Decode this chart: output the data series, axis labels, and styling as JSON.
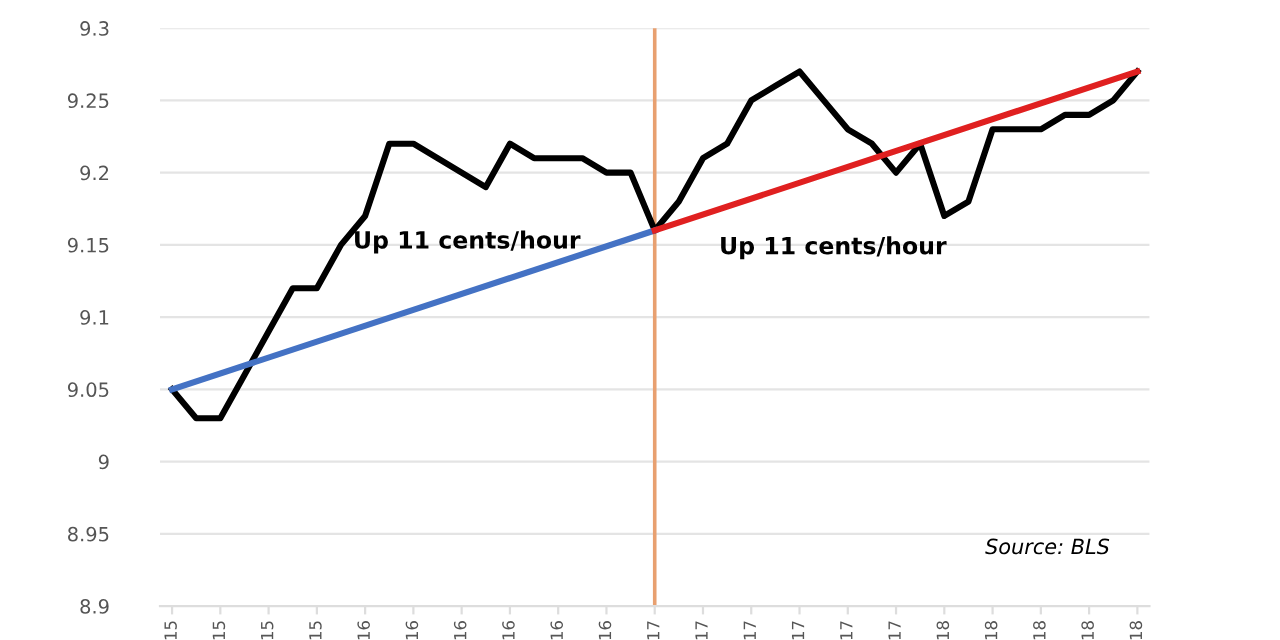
{
  "chart_data": {
    "type": "line",
    "categories": [
      "15",
      null,
      "15",
      null,
      "15",
      null,
      "15",
      null,
      "16",
      null,
      "16",
      null,
      "16",
      null,
      "16",
      null,
      "16",
      null,
      "16",
      null,
      "17",
      null,
      "17",
      null,
      "17",
      null,
      "17",
      null,
      "17",
      null,
      "17",
      null,
      "18",
      null,
      "18",
      null,
      "18",
      null,
      "18",
      null,
      "18"
    ],
    "series": [
      {
        "color": "#000000",
        "values": [
          9.05,
          9.03,
          9.03,
          9.06,
          9.09,
          9.12,
          9.12,
          9.15,
          9.17,
          9.22,
          9.22,
          9.21,
          9.2,
          9.19,
          9.22,
          9.21,
          9.21,
          9.21,
          9.2,
          9.2,
          9.16,
          9.18,
          9.21,
          9.22,
          9.25,
          9.26,
          9.27,
          9.25,
          9.23,
          9.22,
          9.2,
          9.22,
          9.17,
          9.18,
          9.23,
          9.23,
          9.23,
          9.24,
          9.24,
          9.25,
          9.27
        ]
      },
      {
        "color": "#4472c4",
        "values": [
          9.05,
          null,
          null,
          null,
          null,
          null,
          null,
          null,
          null,
          null,
          null,
          null,
          null,
          null,
          null,
          null,
          null,
          null,
          null,
          null,
          9.16,
          null,
          null,
          null,
          null,
          null,
          null,
          null,
          null,
          null,
          null,
          null,
          null,
          null,
          null,
          null,
          null,
          null,
          null,
          null,
          null
        ]
      },
      {
        "color": "#e02020",
        "values": [
          null,
          null,
          null,
          null,
          null,
          null,
          null,
          null,
          null,
          null,
          null,
          null,
          null,
          null,
          null,
          null,
          null,
          null,
          null,
          null,
          9.16,
          null,
          null,
          null,
          null,
          null,
          null,
          null,
          null,
          null,
          null,
          null,
          null,
          null,
          null,
          null,
          null,
          null,
          null,
          null,
          9.27
        ]
      }
    ],
    "ylim": [
      8.9,
      9.3
    ],
    "yticks": [
      8.9,
      8.95,
      9,
      9.05,
      9.1,
      9.15,
      9.2,
      9.25,
      9.3
    ],
    "grid": "y",
    "ref_lines": [
      {
        "axis": "x",
        "value": "17",
        "color": "#e8a070"
      }
    ],
    "annotations": [
      "Up 11 cents/hour",
      "Up 11 cents/hour",
      "Source: BLS"
    ],
    "marker": "none",
    "line_style": "solid"
  }
}
